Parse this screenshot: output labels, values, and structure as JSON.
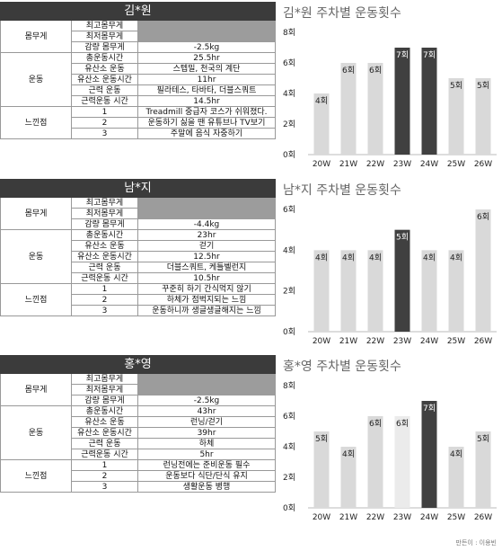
{
  "people": [
    {
      "name": "김*원",
      "chart_title": "김*원 주차별 운동횟수",
      "weight": {
        "group": "몸무게",
        "rows": [
          {
            "label": "최고몸무게",
            "value": ""
          },
          {
            "label": "최저몸무게",
            "value": ""
          },
          {
            "label": "감량 몸무게",
            "value": "-2.5kg"
          }
        ]
      },
      "exercise": {
        "group": "운동",
        "rows": [
          {
            "label": "총운동시간",
            "value": "25.5hr"
          },
          {
            "label": "유산소 운동",
            "value": "스텝밀, 천국의 계단"
          },
          {
            "label": "유산소 운동시간",
            "value": "11hr"
          },
          {
            "label": "근력 운동",
            "value": "필라테스, 타바타, 더블스쿼트"
          },
          {
            "label": "근력운동 시간",
            "value": "14.5hr"
          }
        ]
      },
      "notes": {
        "group": "느낀점",
        "rows": [
          {
            "label": "1",
            "value": "Treadmill 중급자 코스가 쉬워졌다."
          },
          {
            "label": "2",
            "value": "운동하기 싫을 땐 유튜브나 TV보기"
          },
          {
            "label": "3",
            "value": "주말에 음식 자중하기"
          }
        ]
      },
      "chart_data": {
        "type": "bar",
        "categories": [
          "20W",
          "21W",
          "22W",
          "23W",
          "24W",
          "25W",
          "26W"
        ],
        "values": [
          4,
          6,
          6,
          7,
          7,
          5,
          5
        ],
        "labels": [
          "4회",
          "6회",
          "6회",
          "7회",
          "7회",
          "5회",
          "5회"
        ],
        "highlight": [
          false,
          false,
          false,
          true,
          true,
          false,
          false
        ],
        "light": [
          false,
          false,
          false,
          false,
          false,
          false,
          false
        ],
        "yticks": [
          "0회",
          "2회",
          "4회",
          "6회",
          "8회"
        ],
        "ylim": [
          0,
          8
        ]
      }
    },
    {
      "name": "남*지",
      "chart_title": "남*지 주차별 운동횟수",
      "weight": {
        "group": "몸무게",
        "rows": [
          {
            "label": "최고몸무게",
            "value": ""
          },
          {
            "label": "최저몸무게",
            "value": ""
          },
          {
            "label": "감량 몸무게",
            "value": "-4.4kg"
          }
        ]
      },
      "exercise": {
        "group": "운동",
        "rows": [
          {
            "label": "총운동시간",
            "value": "23hr"
          },
          {
            "label": "유산소 운동",
            "value": "걷기"
          },
          {
            "label": "유산소 운동시간",
            "value": "12.5hr"
          },
          {
            "label": "근력 운동",
            "value": "더블스쿼트, 케틀벨런지"
          },
          {
            "label": "근력운동 시간",
            "value": "10.5hr"
          }
        ]
      },
      "notes": {
        "group": "느낀점",
        "rows": [
          {
            "label": "1",
            "value": "꾸준히 하기 간식먹지 않기"
          },
          {
            "label": "2",
            "value": "하체가 점벅지되는 느낌"
          },
          {
            "label": "3",
            "value": "운동하니까 생글생글해지는 느낌"
          }
        ]
      },
      "chart_data": {
        "type": "bar",
        "categories": [
          "20W",
          "21W",
          "22W",
          "23W",
          "24W",
          "25W",
          "26W"
        ],
        "values": [
          4,
          4,
          4,
          5,
          4,
          4,
          6
        ],
        "labels": [
          "4회",
          "4회",
          "4회",
          "5회",
          "4회",
          "4회",
          "6회"
        ],
        "highlight": [
          false,
          false,
          false,
          true,
          false,
          false,
          false
        ],
        "light": [
          false,
          false,
          false,
          false,
          false,
          false,
          false
        ],
        "yticks": [
          "0회",
          "2회",
          "4회",
          "6회"
        ],
        "ylim": [
          0,
          6
        ]
      }
    },
    {
      "name": "홍*영",
      "chart_title": "홍*영 주차별 운동횟수",
      "weight": {
        "group": "몸무게",
        "rows": [
          {
            "label": "최고몸무게",
            "value": ""
          },
          {
            "label": "최저몸무게",
            "value": ""
          },
          {
            "label": "감량 몸무게",
            "value": "-2.5kg"
          }
        ]
      },
      "exercise": {
        "group": "운동",
        "rows": [
          {
            "label": "총운동시간",
            "value": "43hr"
          },
          {
            "label": "유산소 운동",
            "value": "런닝/걷기"
          },
          {
            "label": "유산소 운동시간",
            "value": "39hr"
          },
          {
            "label": "근력 운동",
            "value": "하체"
          },
          {
            "label": "근력운동 시간",
            "value": "5hr"
          }
        ]
      },
      "notes": {
        "group": "느낀점",
        "rows": [
          {
            "label": "1",
            "value": "런닝전에는 준비운동 필수"
          },
          {
            "label": "2",
            "value": "운동보다 식단/단식 유지"
          },
          {
            "label": "3",
            "value": "생활운동 병행"
          }
        ]
      },
      "chart_data": {
        "type": "bar",
        "categories": [
          "20W",
          "21W",
          "22W",
          "23W",
          "24W",
          "25W",
          "26W"
        ],
        "values": [
          5,
          4,
          6,
          6,
          7,
          4,
          5
        ],
        "labels": [
          "5회",
          "4회",
          "6회",
          "6회",
          "7회",
          "4회",
          "5회"
        ],
        "highlight": [
          false,
          false,
          false,
          false,
          true,
          false,
          false
        ],
        "light": [
          false,
          false,
          false,
          true,
          false,
          false,
          false
        ],
        "yticks": [
          "0회",
          "2회",
          "4회",
          "6회",
          "8회"
        ],
        "ylim": [
          0,
          8
        ]
      }
    }
  ],
  "footer": "만든이 : 이용빈",
  "colors": {
    "bar": "#d9d9d9",
    "bar_highlight": "#404040",
    "bar_light": "#ebebeb",
    "header": "#3b3b3b",
    "gray_cell": "#9c9c9c"
  }
}
